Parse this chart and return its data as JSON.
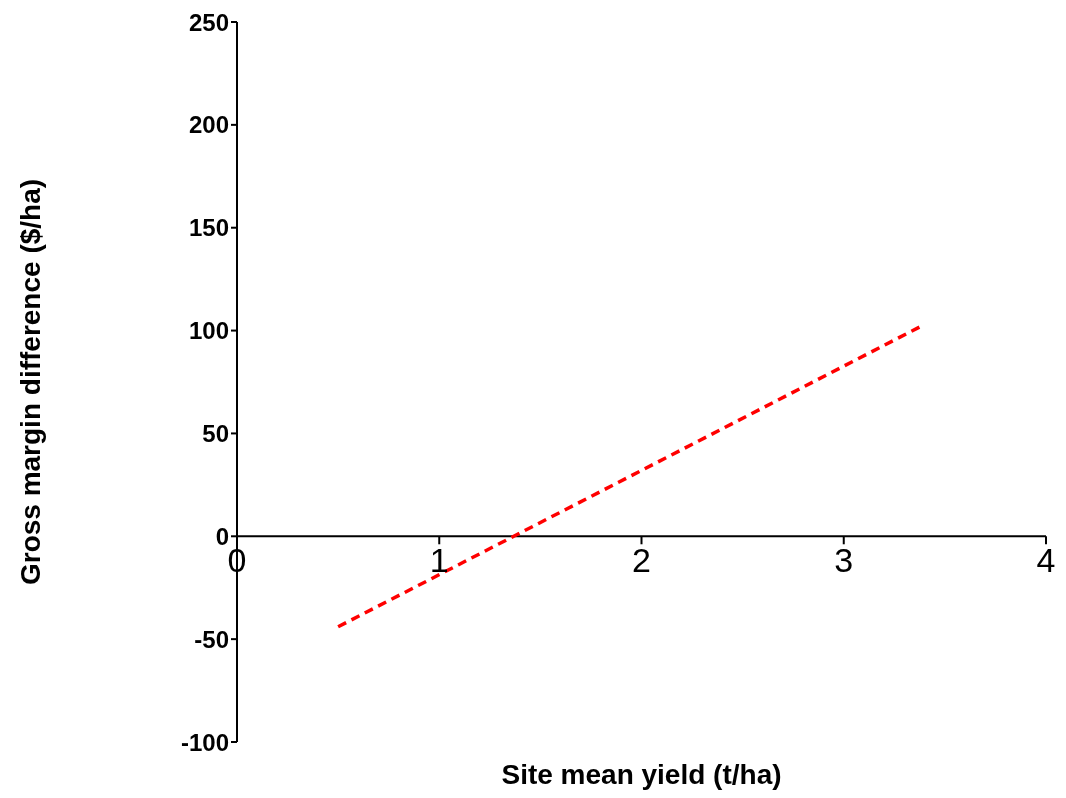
{
  "chart_data": {
    "type": "line",
    "xlabel": "Site mean yield (t/ha)",
    "ylabel": "Gross margin difference ($/ha)",
    "x": [
      0.5,
      3.4
    ],
    "series": [
      {
        "color": "#ff0000",
        "values": [
          -44,
          103
        ]
      }
    ],
    "xlim": [
      0,
      4
    ],
    "xticks": [
      0,
      1,
      2,
      3,
      4
    ],
    "ylim": [
      -100,
      250
    ],
    "yticks": [
      -100,
      -50,
      0,
      50,
      100,
      150,
      200,
      250
    ],
    "grid": false,
    "legend": false,
    "marker": "none",
    "line_style": "dashed"
  }
}
